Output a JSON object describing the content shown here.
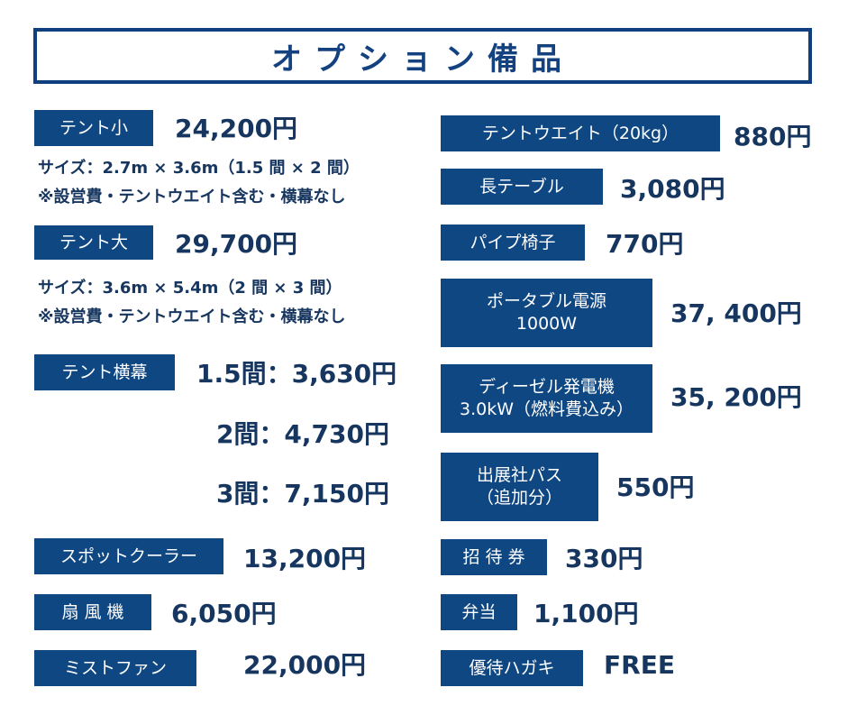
{
  "title": "オプション備品",
  "left": {
    "tent_small": {
      "label": "テント小",
      "price": "24,200円",
      "size": "サイズ：2.7m × 3.6m（1.5 間 × 2 間）",
      "note": "※設営費・テントウエイト含む・横幕なし"
    },
    "tent_large": {
      "label": "テント大",
      "price": "29,700円",
      "size": "サイズ：3.6m × 5.4m（2 間 × 3 間）",
      "note": "※設営費・テントウエイト含む・横幕なし"
    },
    "tent_side": {
      "label": "テント横幕",
      "prices": [
        "1.5間：3,630円",
        "2間：4,730円",
        "3間：7,150円"
      ]
    },
    "spot_cooler": {
      "label": "スポットクーラー",
      "price": "13,200円"
    },
    "fan": {
      "label": "扇 風 機",
      "price": "6,050円"
    },
    "mist_fan": {
      "label": "ミストファン",
      "price": "22,000円"
    }
  },
  "right": {
    "tent_weight": {
      "label": "テントウエイト（20kg）",
      "price": "880円"
    },
    "long_table": {
      "label": "長テーブル",
      "price": "3,080円"
    },
    "pipe_chair": {
      "label": "パイプ椅子",
      "price": "770円"
    },
    "portable_power": {
      "label1": "ポータブル電源",
      "label2": "1000W",
      "price": "37, 400円"
    },
    "diesel_gen": {
      "label1": "ディーゼル発電機",
      "label2": "3.0kW（燃料費込み）",
      "price": "35, 200円"
    },
    "exhibitor_pass": {
      "label1": "出展社パス",
      "label2": "（追加分）",
      "price": "550円"
    },
    "invitation": {
      "label": "招 待 券",
      "price": "330円"
    },
    "bento": {
      "label": "弁当",
      "price": "1,100円"
    },
    "postcard": {
      "label": "優待ハガキ",
      "price": "FREE"
    }
  },
  "colors": {
    "tag_bg": "#0f4783",
    "text": "#16365f",
    "border": "#0f3f7e"
  }
}
